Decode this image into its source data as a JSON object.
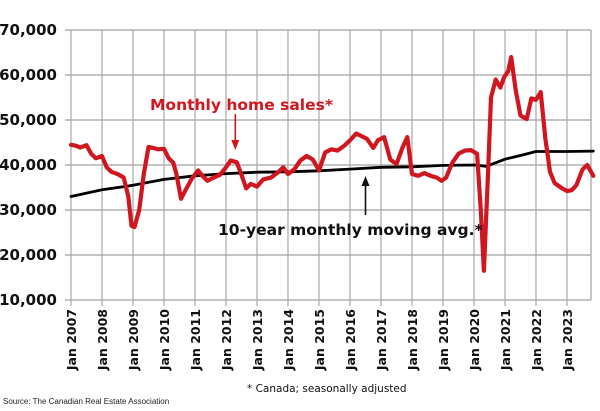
{
  "chart_data": {
    "type": "line",
    "title": "",
    "xlabel": "",
    "ylabel": "",
    "ylim": [
      10000,
      70000
    ],
    "xlim": [
      2007.0,
      2023.85
    ],
    "grid": true,
    "yticks": [
      10000,
      20000,
      30000,
      40000,
      50000,
      60000,
      70000
    ],
    "ytick_labels": [
      "10,000",
      "20,000",
      "30,000",
      "40,000",
      "50,000",
      "60,000",
      "70,000"
    ],
    "xticks": [
      2007,
      2008,
      2009,
      2010,
      2011,
      2012,
      2013,
      2014,
      2015,
      2016,
      2017,
      2018,
      2019,
      2020,
      2021,
      2022,
      2023
    ],
    "xtick_labels": [
      "Jan 2007",
      "Jan 2008",
      "Jan 2009",
      "Jan 2010",
      "Jan 2011",
      "Jan 2012",
      "Jan 2013",
      "Jan 2014",
      "Jan 2015",
      "Jan 2016",
      "Jan 2017",
      "Jan 2018",
      "Jan 2019",
      "Jan 2020",
      "Jan 2021",
      "Jan 2022",
      "Jan 2023"
    ],
    "series": [
      {
        "name": "Monthly home sales*",
        "color": "#d0161f",
        "x": [
          2007.0,
          2007.15,
          2007.3,
          2007.5,
          2007.65,
          2007.8,
          2008.0,
          2008.15,
          2008.3,
          2008.5,
          2008.7,
          2008.85,
          2008.95,
          2009.05,
          2009.2,
          2009.35,
          2009.5,
          2009.65,
          2009.8,
          2010.0,
          2010.15,
          2010.3,
          2010.4,
          2010.55,
          2010.7,
          2010.9,
          2011.1,
          2011.25,
          2011.4,
          2011.6,
          2011.8,
          2012.0,
          2012.15,
          2012.35,
          2012.5,
          2012.65,
          2012.8,
          2013.0,
          2013.2,
          2013.45,
          2013.7,
          2013.85,
          2014.0,
          2014.2,
          2014.4,
          2014.6,
          2014.8,
          2015.0,
          2015.2,
          2015.4,
          2015.6,
          2015.8,
          2016.0,
          2016.2,
          2016.35,
          2016.55,
          2016.75,
          2016.9,
          2017.1,
          2017.3,
          2017.5,
          2017.7,
          2017.85,
          2018.0,
          2018.2,
          2018.4,
          2018.6,
          2018.8,
          2018.95,
          2019.1,
          2019.3,
          2019.5,
          2019.7,
          2019.9,
          2020.1,
          2020.22,
          2020.32,
          2020.45,
          2020.55,
          2020.7,
          2020.85,
          2020.97,
          2021.1,
          2021.2,
          2021.35,
          2021.5,
          2021.7,
          2021.85,
          2022.0,
          2022.15,
          2022.3,
          2022.45,
          2022.6,
          2022.8,
          2023.0,
          2023.15,
          2023.3,
          2023.5,
          2023.65,
          2023.8,
          2023.85
        ],
        "values": [
          44500,
          44300,
          43900,
          44400,
          42500,
          41500,
          42000,
          39500,
          38500,
          38000,
          37200,
          33000,
          26500,
          26200,
          30000,
          38000,
          44000,
          43800,
          43500,
          43600,
          41500,
          40500,
          38000,
          32500,
          34500,
          37000,
          38800,
          37500,
          36500,
          37200,
          37800,
          39500,
          41000,
          40600,
          37800,
          34800,
          35800,
          35200,
          36800,
          37200,
          38500,
          39500,
          38000,
          39000,
          41000,
          42000,
          41200,
          38800,
          42800,
          43500,
          43200,
          44200,
          45500,
          47000,
          46500,
          45800,
          43800,
          45500,
          46200,
          41200,
          40200,
          44000,
          46200,
          38000,
          37600,
          38200,
          37600,
          37200,
          36500,
          37200,
          40500,
          42500,
          43200,
          43300,
          42500,
          30000,
          16500,
          38000,
          55000,
          59000,
          57200,
          59500,
          60800,
          64000,
          56500,
          51000,
          50200,
          54800,
          54500,
          56200,
          46000,
          38500,
          36000,
          35000,
          34200,
          34400,
          35500,
          39000,
          40000,
          38200,
          37600
        ]
      },
      {
        "name": "10-year monthly moving avg.*",
        "color": "#000000",
        "x": [
          2007.0,
          2008.0,
          2009.0,
          2010.0,
          2011.0,
          2012.0,
          2013.0,
          2014.0,
          2015.0,
          2016.0,
          2017.0,
          2018.0,
          2019.0,
          2020.0,
          2020.4,
          2021.0,
          2021.5,
          2022.0,
          2023.0,
          2023.85
        ],
        "values": [
          33000,
          34500,
          35500,
          36800,
          37600,
          38100,
          38400,
          38500,
          38700,
          39100,
          39500,
          39600,
          39900,
          40000,
          39700,
          41300,
          42100,
          43000,
          43000,
          43100
        ]
      }
    ],
    "annotations": [
      {
        "text": "Monthly home sales*",
        "series": "Monthly home sales*",
        "arrow_to": 2012.3
      },
      {
        "text": "10-year monthly moving avg.*",
        "series": "10-year monthly moving avg.*",
        "arrow_to": 2016.5
      }
    ],
    "note": "* Canada; seasonally adjusted",
    "source": "Source: The Canadian Real Estate Association"
  }
}
